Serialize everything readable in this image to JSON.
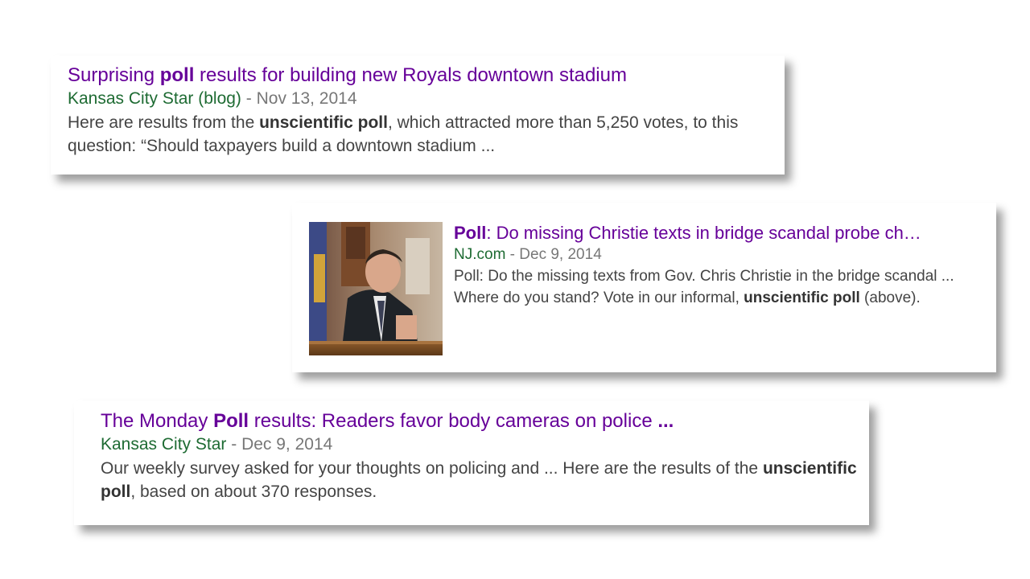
{
  "results": [
    {
      "title_parts": [
        {
          "text": "Surprising ",
          "bold": false
        },
        {
          "text": "poll",
          "bold": true
        },
        {
          "text": " results for building new Royals downtown stadium",
          "bold": false
        }
      ],
      "source": "Kansas City Star (blog)",
      "separator": " - ",
      "date": "Nov 13, 2014",
      "snippet_parts": [
        {
          "text": "Here are results from the ",
          "bold": false
        },
        {
          "text": "unscientific poll",
          "bold": true
        },
        {
          "text": ", which attracted more than 5,250 votes, to this question: “Should taxpayers build a downtown stadium ...",
          "bold": false
        }
      ]
    },
    {
      "title_parts": [
        {
          "text": "Poll",
          "bold": true
        },
        {
          "text": ": Do missing Christie texts in bridge scandal probe ch…",
          "bold": false
        }
      ],
      "source": "NJ.com",
      "separator": " - ",
      "date": "Dec 9, 2014",
      "snippet_parts": [
        {
          "text": "Poll: Do the missing texts from Gov. Chris Christie in the bridge scandal ... Where do you stand? Vote in our informal, ",
          "bold": false
        },
        {
          "text": "unscientific poll",
          "bold": true
        },
        {
          "text": " (above).",
          "bold": false
        }
      ]
    },
    {
      "title_parts": [
        {
          "text": "The Monday ",
          "bold": false
        },
        {
          "text": "Poll",
          "bold": true
        },
        {
          "text": " results: Readers favor body cameras on police ",
          "bold": false
        },
        {
          "text": "...",
          "bold": true
        }
      ],
      "source": "Kansas City Star",
      "separator": " - ",
      "date": "Dec 9, 2014",
      "snippet_parts": [
        {
          "text": "Our weekly survey asked for your thoughts on policing and ... Here are the results of the ",
          "bold": false
        },
        {
          "text": "unscientific poll",
          "bold": true
        },
        {
          "text": ", based on about 370 responses.",
          "bold": false
        }
      ]
    }
  ],
  "colors": {
    "title": "#660099",
    "source": "#1e6b33",
    "meta": "#777777",
    "snippet": "#444444"
  }
}
